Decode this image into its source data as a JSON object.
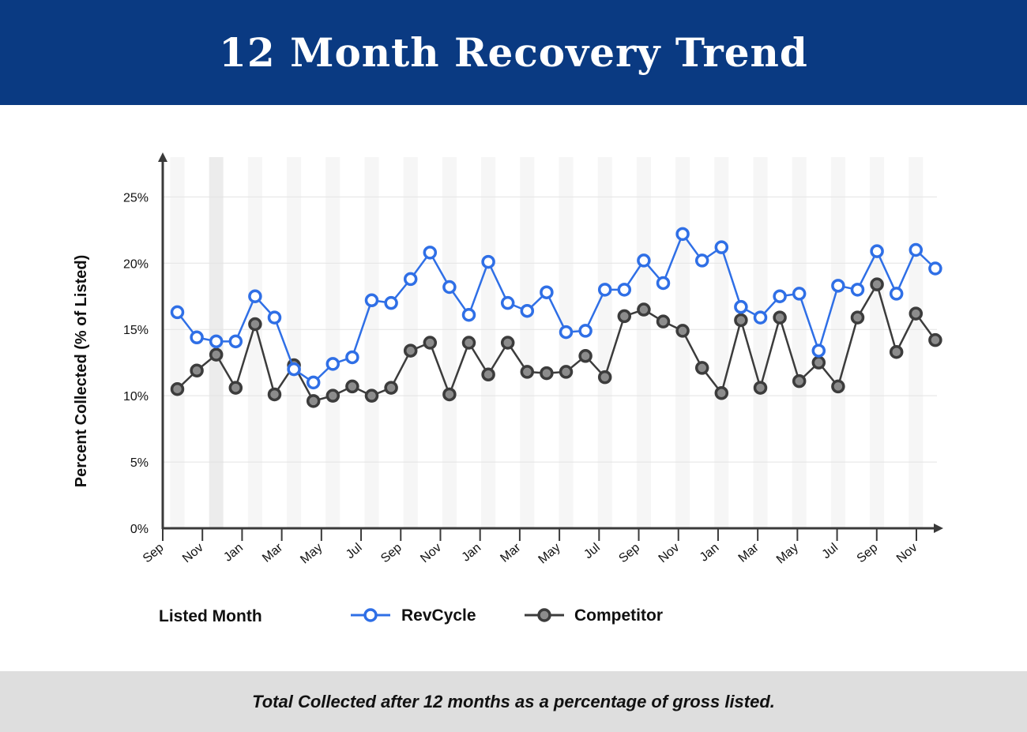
{
  "header": {
    "title": "12 Month Recovery Trend"
  },
  "footer": {
    "caption": "Total Collected after 12 months as a percentage of gross listed."
  },
  "colors": {
    "header_bg": "#0a3a82",
    "revcycle": "#2f6fe6",
    "competitor": "#3c3c3c",
    "competitor_fill": "#8c8c8c",
    "footer_bg": "#dedede"
  },
  "chart_data": {
    "type": "line",
    "title": "12 Month Recovery Trend",
    "xlabel": "Listed Month",
    "ylabel": "Percent Collected (% of Listed)",
    "ylim": [
      0,
      28
    ],
    "yticks": [
      0,
      5,
      10,
      15,
      20,
      25
    ],
    "ytick_labels": [
      "0%",
      "5%",
      "10%",
      "15%",
      "20%",
      "25%"
    ],
    "xtick_labels": [
      "Sep",
      "Nov",
      "Jan",
      "Mar",
      "May",
      "Jul",
      "Sep",
      "Nov",
      "Jan",
      "Mar",
      "May",
      "Jul",
      "Sep",
      "Nov",
      "Jan",
      "Mar",
      "May",
      "Jul",
      "Sep",
      "Nov"
    ],
    "grid": "horizontal",
    "legend_position": "bottom",
    "series": [
      {
        "name": "RevCycle",
        "values": [
          16.3,
          14.4,
          14.1,
          14.1,
          17.5,
          15.9,
          12.0,
          11.0,
          12.4,
          12.9,
          17.2,
          17.0,
          18.8,
          20.8,
          18.2,
          16.1,
          20.1,
          17.0,
          16.4,
          17.8,
          14.8,
          14.9,
          18.0,
          18.0,
          20.2,
          18.5,
          22.2,
          20.2,
          21.2,
          16.7,
          15.9,
          17.5,
          17.7,
          13.4,
          18.3,
          18.0,
          20.9,
          17.7,
          21.0,
          19.6
        ]
      },
      {
        "name": "Competitor",
        "values": [
          10.5,
          11.9,
          13.1,
          10.6,
          15.4,
          10.1,
          12.3,
          9.6,
          10.0,
          10.7,
          10.0,
          10.6,
          13.4,
          14.0,
          10.1,
          14.0,
          11.6,
          14.0,
          11.8,
          11.7,
          11.8,
          13.0,
          11.4,
          16.0,
          16.5,
          15.6,
          14.9,
          12.1,
          10.2,
          15.7,
          10.6,
          15.9,
          11.1,
          12.5,
          10.7,
          15.9,
          18.4,
          13.3,
          16.2,
          14.2
        ]
      }
    ]
  }
}
